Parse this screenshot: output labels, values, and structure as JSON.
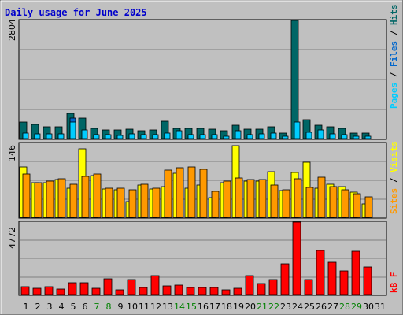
{
  "chart_data": [
    {
      "type": "bar",
      "panel": "top",
      "title": "Daily usage for June 2025",
      "ymax_label": "2804",
      "ylim": [
        0,
        2804
      ],
      "categories": [
        "1",
        "2",
        "3",
        "4",
        "5",
        "6",
        "7",
        "8",
        "9",
        "10",
        "11",
        "12",
        "13",
        "14",
        "15",
        "16",
        "17",
        "18",
        "19",
        "20",
        "21",
        "22",
        "23",
        "24",
        "25",
        "26",
        "27",
        "28",
        "29",
        "30",
        "31"
      ],
      "weekend_days": [
        "7",
        "8",
        "14",
        "15",
        "21",
        "22",
        "28",
        "29"
      ],
      "series": [
        {
          "name": "Hits",
          "color": "#006666",
          "values": [
            400,
            340,
            280,
            280,
            600,
            480,
            240,
            200,
            210,
            230,
            190,
            200,
            410,
            250,
            240,
            250,
            220,
            180,
            320,
            230,
            230,
            280,
            130,
            2804,
            450,
            310,
            280,
            240,
            140,
            140,
            0
          ]
        },
        {
          "name": "Files",
          "color": "#0066cc",
          "values": [
            0,
            0,
            0,
            0,
            480,
            0,
            0,
            0,
            0,
            0,
            0,
            0,
            0,
            0,
            0,
            0,
            0,
            0,
            0,
            0,
            0,
            0,
            0,
            0,
            0,
            0,
            0,
            0,
            0,
            0,
            0
          ]
        },
        {
          "name": "Pages",
          "color": "#00ccff",
          "values": [
            130,
            120,
            110,
            110,
            390,
            200,
            95,
            85,
            80,
            110,
            85,
            90,
            140,
            190,
            95,
            95,
            85,
            60,
            180,
            90,
            110,
            130,
            50,
            390,
            150,
            200,
            120,
            100,
            50,
            50,
            0
          ]
        }
      ],
      "legend": [
        {
          "text": "Pages",
          "color": "#00ccff"
        },
        {
          "text": " / ",
          "color": "#000000"
        },
        {
          "text": "Files",
          "color": "#0066cc"
        },
        {
          "text": " / ",
          "color": "#000000"
        },
        {
          "text": "Hits",
          "color": "#006666"
        }
      ]
    },
    {
      "type": "bar",
      "panel": "middle",
      "ymax_label": "146",
      "ylim": [
        0,
        146
      ],
      "series": [
        {
          "name": "Visits",
          "color": "#ffff00",
          "values": [
            99,
            69,
            68,
            74,
            58,
            135,
            82,
            56,
            55,
            31,
            63,
            56,
            60,
            87,
            57,
            63,
            39,
            69,
            141,
            72,
            72,
            90,
            53,
            89,
            109,
            57,
            65,
            61,
            49,
            27,
            0
          ]
        },
        {
          "name": "Sites",
          "color": "#ff9900",
          "values": [
            85,
            68,
            71,
            76,
            66,
            80,
            85,
            58,
            58,
            55,
            65,
            57,
            93,
            98,
            99,
            94,
            52,
            71,
            77,
            75,
            74,
            64,
            55,
            76,
            59,
            79,
            61,
            55,
            47,
            40,
            0
          ]
        }
      ],
      "legend": [
        {
          "text": "Sites",
          "color": "#ff9900"
        },
        {
          "text": " / ",
          "color": "#000000"
        },
        {
          "text": "Visits",
          "color": "#ffff00"
        }
      ]
    },
    {
      "type": "bar",
      "panel": "bottom",
      "ymax_label": "4772",
      "ylim": [
        0,
        4772
      ],
      "series": [
        {
          "name": "kB F",
          "color": "#ff0000",
          "values": [
            520,
            430,
            500,
            380,
            800,
            790,
            440,
            1030,
            290,
            1000,
            470,
            1220,
            590,
            640,
            470,
            470,
            480,
            300,
            410,
            1220,
            750,
            970,
            2010,
            4772,
            980,
            2890,
            2130,
            1560,
            2870,
            1800,
            0
          ]
        }
      ],
      "legend": [
        {
          "text": "kB F",
          "color": "#ff0000"
        }
      ]
    }
  ]
}
